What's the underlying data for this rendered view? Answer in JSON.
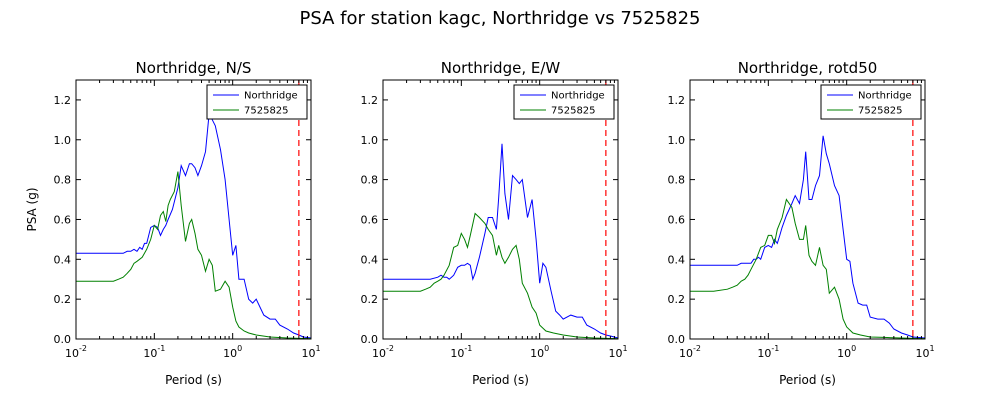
{
  "figure": {
    "title": "PSA for station kagc, Northridge vs 7525825"
  },
  "chart_data": [
    {
      "type": "line",
      "title": "Northridge, N/S",
      "xlabel": "Period (s)",
      "ylabel": "PSA (g)",
      "xscale": "log",
      "xlim": [
        0.01,
        10
      ],
      "ylim": [
        0,
        1.3
      ],
      "xticks": [
        "10^-2",
        "10^-1",
        "10^0",
        "10^1"
      ],
      "yticks": [
        "0.0",
        "0.2",
        "0.4",
        "0.6",
        "0.8",
        "1.0",
        "1.2"
      ],
      "legend_position": "top-right",
      "vline": {
        "x": 7.0,
        "color": "#ff0000",
        "style": "dashed"
      },
      "series": [
        {
          "name": "Northridge",
          "color": "#0000ff",
          "x": [
            0.01,
            0.02,
            0.03,
            0.04,
            0.045,
            0.05,
            0.055,
            0.06,
            0.065,
            0.07,
            0.075,
            0.08,
            0.09,
            0.1,
            0.11,
            0.12,
            0.13,
            0.14,
            0.15,
            0.17,
            0.2,
            0.22,
            0.25,
            0.28,
            0.3,
            0.33,
            0.36,
            0.4,
            0.45,
            0.5,
            0.55,
            0.6,
            0.7,
            0.8,
            0.9,
            1.0,
            1.1,
            1.2,
            1.4,
            1.6,
            1.8,
            2.0,
            2.5,
            3.0,
            3.5,
            4.0,
            5.0,
            6.0,
            7.0,
            8.0,
            10.0
          ],
          "y": [
            0.43,
            0.43,
            0.43,
            0.43,
            0.44,
            0.44,
            0.45,
            0.44,
            0.46,
            0.45,
            0.48,
            0.48,
            0.56,
            0.57,
            0.56,
            0.52,
            0.55,
            0.57,
            0.6,
            0.65,
            0.76,
            0.87,
            0.82,
            0.88,
            0.88,
            0.86,
            0.82,
            0.87,
            0.94,
            1.13,
            1.1,
            1.07,
            0.95,
            0.8,
            0.6,
            0.42,
            0.47,
            0.3,
            0.3,
            0.2,
            0.18,
            0.2,
            0.12,
            0.1,
            0.1,
            0.07,
            0.05,
            0.03,
            0.02,
            0.01,
            0.005
          ]
        },
        {
          "name": "7525825",
          "color": "#008000",
          "x": [
            0.01,
            0.02,
            0.03,
            0.035,
            0.04,
            0.045,
            0.05,
            0.055,
            0.06,
            0.07,
            0.08,
            0.09,
            0.1,
            0.11,
            0.12,
            0.13,
            0.14,
            0.15,
            0.16,
            0.18,
            0.2,
            0.22,
            0.25,
            0.28,
            0.3,
            0.33,
            0.36,
            0.4,
            0.45,
            0.5,
            0.55,
            0.6,
            0.7,
            0.8,
            0.9,
            1.0,
            1.1,
            1.2,
            1.4,
            1.6,
            2.0,
            3.0,
            5.0,
            7.0,
            10.0
          ],
          "y": [
            0.29,
            0.29,
            0.29,
            0.3,
            0.31,
            0.33,
            0.35,
            0.38,
            0.39,
            0.41,
            0.45,
            0.5,
            0.57,
            0.55,
            0.62,
            0.64,
            0.59,
            0.67,
            0.7,
            0.74,
            0.84,
            0.67,
            0.49,
            0.58,
            0.6,
            0.53,
            0.45,
            0.42,
            0.34,
            0.4,
            0.37,
            0.24,
            0.25,
            0.29,
            0.26,
            0.16,
            0.09,
            0.06,
            0.04,
            0.03,
            0.02,
            0.01,
            0.005,
            0.003,
            0.002
          ]
        }
      ]
    },
    {
      "type": "line",
      "title": "Northridge, E/W",
      "xlabel": "Period (s)",
      "ylabel": "",
      "xscale": "log",
      "xlim": [
        0.01,
        10
      ],
      "ylim": [
        0,
        1.3
      ],
      "xticks": [
        "10^-2",
        "10^-1",
        "10^0",
        "10^1"
      ],
      "yticks": [
        "0.0",
        "0.2",
        "0.4",
        "0.6",
        "0.8",
        "1.0",
        "1.2"
      ],
      "legend_position": "top-right",
      "vline": {
        "x": 7.0,
        "color": "#ff0000",
        "style": "dashed"
      },
      "series": [
        {
          "name": "Northridge",
          "color": "#0000ff",
          "x": [
            0.01,
            0.02,
            0.03,
            0.04,
            0.05,
            0.055,
            0.06,
            0.065,
            0.07,
            0.075,
            0.08,
            0.09,
            0.1,
            0.11,
            0.12,
            0.13,
            0.14,
            0.15,
            0.17,
            0.2,
            0.22,
            0.25,
            0.28,
            0.3,
            0.33,
            0.36,
            0.4,
            0.45,
            0.5,
            0.55,
            0.6,
            0.7,
            0.8,
            0.9,
            1.0,
            1.1,
            1.2,
            1.4,
            1.6,
            1.8,
            2.0,
            2.5,
            3.0,
            3.5,
            4.0,
            5.0,
            6.0,
            7.0,
            8.0,
            10.0
          ],
          "y": [
            0.3,
            0.3,
            0.3,
            0.3,
            0.31,
            0.32,
            0.31,
            0.31,
            0.3,
            0.31,
            0.32,
            0.36,
            0.37,
            0.37,
            0.38,
            0.37,
            0.3,
            0.33,
            0.41,
            0.53,
            0.61,
            0.61,
            0.55,
            0.71,
            0.98,
            0.73,
            0.6,
            0.82,
            0.8,
            0.78,
            0.8,
            0.61,
            0.7,
            0.5,
            0.28,
            0.38,
            0.36,
            0.24,
            0.14,
            0.12,
            0.1,
            0.12,
            0.11,
            0.11,
            0.07,
            0.05,
            0.03,
            0.02,
            0.015,
            0.005
          ]
        },
        {
          "name": "7525825",
          "color": "#008000",
          "x": [
            0.01,
            0.02,
            0.03,
            0.035,
            0.04,
            0.045,
            0.05,
            0.055,
            0.06,
            0.07,
            0.08,
            0.09,
            0.1,
            0.11,
            0.12,
            0.13,
            0.15,
            0.17,
            0.2,
            0.22,
            0.25,
            0.28,
            0.3,
            0.33,
            0.36,
            0.4,
            0.45,
            0.5,
            0.55,
            0.6,
            0.7,
            0.8,
            0.9,
            1.0,
            1.2,
            1.5,
            2.0,
            3.0,
            5.0,
            7.0,
            10.0
          ],
          "y": [
            0.24,
            0.24,
            0.24,
            0.25,
            0.26,
            0.28,
            0.29,
            0.3,
            0.32,
            0.37,
            0.46,
            0.47,
            0.53,
            0.5,
            0.46,
            0.52,
            0.63,
            0.61,
            0.58,
            0.55,
            0.52,
            0.42,
            0.47,
            0.41,
            0.38,
            0.41,
            0.45,
            0.47,
            0.4,
            0.28,
            0.23,
            0.16,
            0.13,
            0.07,
            0.04,
            0.03,
            0.02,
            0.01,
            0.005,
            0.003,
            0.002
          ]
        }
      ]
    },
    {
      "type": "line",
      "title": "Northridge, rotd50",
      "xlabel": "Period (s)",
      "ylabel": "",
      "xscale": "log",
      "xlim": [
        0.01,
        10
      ],
      "ylim": [
        0,
        1.3
      ],
      "xticks": [
        "10^-2",
        "10^-1",
        "10^0",
        "10^1"
      ],
      "yticks": [
        "0.0",
        "0.2",
        "0.4",
        "0.6",
        "0.8",
        "1.0",
        "1.2"
      ],
      "legend_position": "top-right",
      "vline": {
        "x": 7.0,
        "color": "#ff0000",
        "style": "dashed"
      },
      "series": [
        {
          "name": "Northridge",
          "color": "#0000ff",
          "x": [
            0.01,
            0.02,
            0.03,
            0.04,
            0.045,
            0.05,
            0.055,
            0.06,
            0.065,
            0.07,
            0.075,
            0.08,
            0.09,
            0.1,
            0.11,
            0.12,
            0.13,
            0.14,
            0.15,
            0.17,
            0.2,
            0.22,
            0.25,
            0.28,
            0.3,
            0.33,
            0.36,
            0.4,
            0.45,
            0.5,
            0.55,
            0.6,
            0.7,
            0.8,
            0.9,
            1.0,
            1.1,
            1.2,
            1.4,
            1.6,
            1.8,
            2.0,
            2.5,
            3.0,
            3.5,
            4.0,
            5.0,
            6.0,
            7.0,
            8.0,
            10.0
          ],
          "y": [
            0.37,
            0.37,
            0.37,
            0.37,
            0.38,
            0.38,
            0.38,
            0.38,
            0.4,
            0.4,
            0.41,
            0.4,
            0.46,
            0.47,
            0.46,
            0.5,
            0.48,
            0.52,
            0.56,
            0.62,
            0.68,
            0.72,
            0.68,
            0.8,
            0.94,
            0.7,
            0.7,
            0.77,
            0.82,
            1.02,
            0.93,
            0.88,
            0.77,
            0.72,
            0.55,
            0.4,
            0.39,
            0.28,
            0.18,
            0.17,
            0.17,
            0.11,
            0.1,
            0.1,
            0.08,
            0.05,
            0.03,
            0.02,
            0.01,
            0.008,
            0.005
          ]
        },
        {
          "name": "7525825",
          "color": "#008000",
          "x": [
            0.01,
            0.02,
            0.03,
            0.035,
            0.04,
            0.045,
            0.05,
            0.055,
            0.06,
            0.07,
            0.08,
            0.09,
            0.1,
            0.11,
            0.12,
            0.13,
            0.15,
            0.17,
            0.2,
            0.22,
            0.25,
            0.28,
            0.3,
            0.33,
            0.36,
            0.4,
            0.45,
            0.5,
            0.55,
            0.6,
            0.7,
            0.8,
            0.9,
            1.0,
            1.2,
            1.5,
            2.0,
            3.0,
            5.0,
            7.0,
            10.0
          ],
          "y": [
            0.24,
            0.24,
            0.25,
            0.26,
            0.27,
            0.29,
            0.3,
            0.32,
            0.35,
            0.4,
            0.46,
            0.47,
            0.52,
            0.52,
            0.48,
            0.55,
            0.61,
            0.7,
            0.66,
            0.58,
            0.5,
            0.5,
            0.57,
            0.42,
            0.39,
            0.37,
            0.46,
            0.37,
            0.35,
            0.23,
            0.26,
            0.2,
            0.1,
            0.06,
            0.03,
            0.02,
            0.01,
            0.008,
            0.005,
            0.003,
            0.002
          ]
        }
      ]
    }
  ]
}
